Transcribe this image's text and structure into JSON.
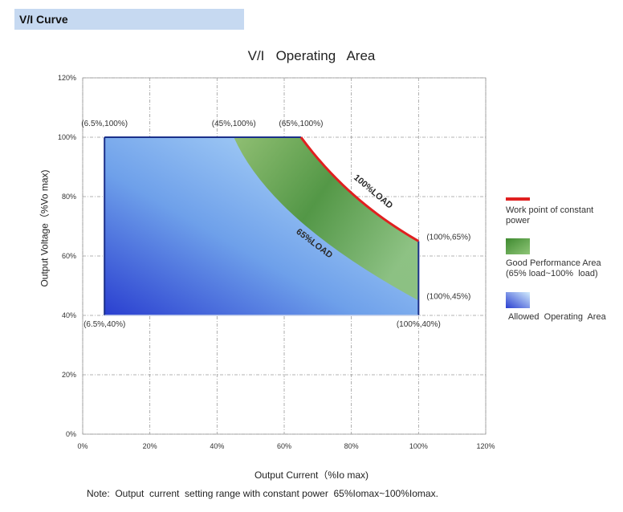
{
  "header": {
    "title": "V/I Curve"
  },
  "note": "Note:  Output  current  setting range with constant power  65%Iomax~100%Iomax.",
  "chart_data": {
    "type": "area",
    "title": "V/I   Operating   Area",
    "xlabel": "Output Current（%Io max)",
    "ylabel": "Output Voltage（%Vo max)",
    "xlim": [
      0,
      120
    ],
    "ylim": [
      0,
      120
    ],
    "x_ticks": [
      "0%",
      "20%",
      "40%",
      "60%",
      "80%",
      "100%",
      "120%"
    ],
    "y_ticks": [
      "0%",
      "20%",
      "40%",
      "60%",
      "80%",
      "100%",
      "120%"
    ],
    "grid": true,
    "legend_position": "right",
    "regions": [
      {
        "name": "Allowed  Operating  Area",
        "points": [
          [
            6.5,
            40
          ],
          [
            6.5,
            100
          ],
          [
            65,
            100
          ],
          [
            100,
            65
          ],
          [
            100,
            40
          ]
        ],
        "color": "#3a57d6"
      },
      {
        "name": "Good Performance Area\n(65% load~100%  load)",
        "upper_points": [
          [
            45,
            100
          ],
          [
            65,
            100
          ],
          [
            100,
            65
          ]
        ],
        "lower_points": [
          [
            45,
            100
          ],
          [
            100,
            45
          ]
        ],
        "color": "#5a9a3a"
      }
    ],
    "lines": [
      {
        "name": "Work point of constant\npower",
        "color": "#e02020",
        "points": [
          [
            65,
            100
          ],
          [
            100,
            65
          ]
        ]
      }
    ],
    "curve_labels": [
      {
        "text": "100%LOAD",
        "x": 86,
        "y": 81,
        "angle": 40
      },
      {
        "text": "65%LOAD",
        "x": 68.5,
        "y": 63.5,
        "angle": 37
      }
    ],
    "annotations": [
      {
        "text": "(6.5%,100%)",
        "x": 6.5,
        "y": 100,
        "anchor": "above"
      },
      {
        "text": "(45%,100%)",
        "x": 45,
        "y": 100,
        "anchor": "above"
      },
      {
        "text": "(65%,100%)",
        "x": 65,
        "y": 100,
        "anchor": "above"
      },
      {
        "text": "(100%,65%)",
        "x": 100,
        "y": 65,
        "anchor": "right"
      },
      {
        "text": "(100%,45%)",
        "x": 100,
        "y": 45,
        "anchor": "right"
      },
      {
        "text": "(100%,40%)",
        "x": 100,
        "y": 40,
        "anchor": "below"
      },
      {
        "text": "(6.5%,40%)",
        "x": 6.5,
        "y": 40,
        "anchor": "below"
      }
    ]
  }
}
